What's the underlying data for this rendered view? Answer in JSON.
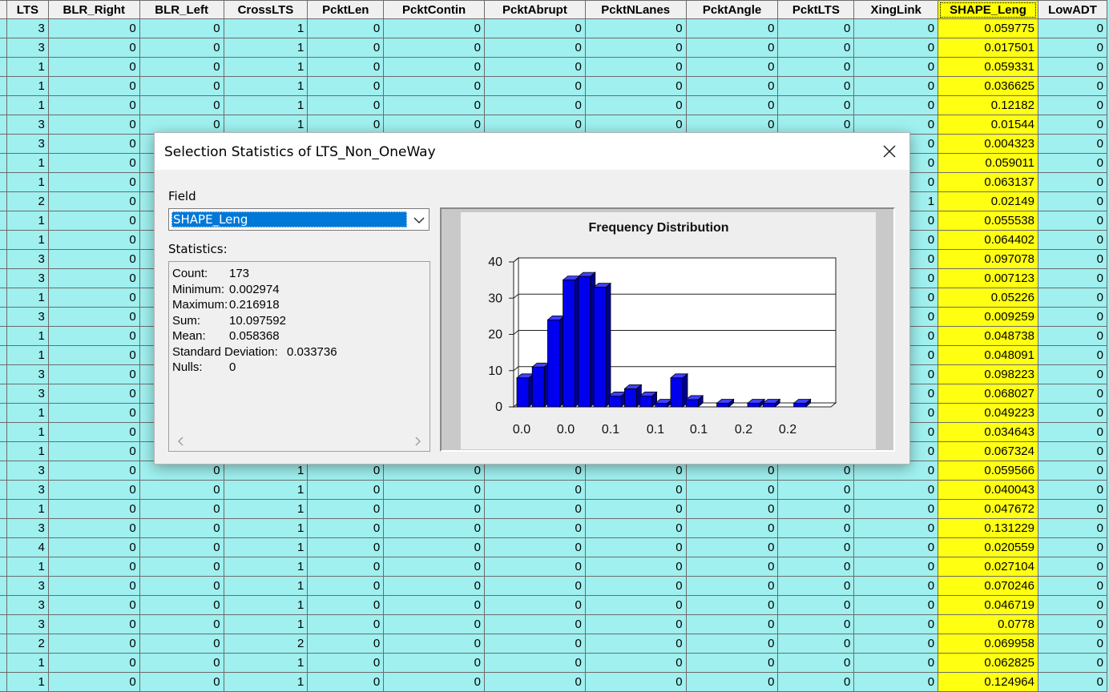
{
  "table": {
    "columns": [
      "LTS",
      "BLR_Right",
      "BLR_Left",
      "CrossLTS",
      "PcktLen",
      "PcktContin",
      "PcktAbrupt",
      "PcktNLanes",
      "PcktAngle",
      "PcktLTS",
      "XingLink",
      "SHAPE_Leng",
      "LowADT"
    ],
    "selected_column": "SHAPE_Leng",
    "rows": [
      [
        "3",
        "0",
        "0",
        "1",
        "0",
        "0",
        "0",
        "0",
        "0",
        "0",
        "0",
        "0.059775",
        "0"
      ],
      [
        "3",
        "0",
        "0",
        "1",
        "0",
        "0",
        "0",
        "0",
        "0",
        "0",
        "0",
        "0.017501",
        "0"
      ],
      [
        "1",
        "0",
        "0",
        "1",
        "0",
        "0",
        "0",
        "0",
        "0",
        "0",
        "0",
        "0.059331",
        "0"
      ],
      [
        "1",
        "0",
        "0",
        "1",
        "0",
        "0",
        "0",
        "0",
        "0",
        "0",
        "0",
        "0.036625",
        "0"
      ],
      [
        "1",
        "0",
        "0",
        "1",
        "0",
        "0",
        "0",
        "0",
        "0",
        "0",
        "0",
        "0.12182",
        "0"
      ],
      [
        "3",
        "0",
        "0",
        "1",
        "0",
        "0",
        "0",
        "0",
        "0",
        "0",
        "0",
        "0.01544",
        "0"
      ],
      [
        "3",
        "0",
        "",
        "",
        "",
        "",
        "",
        "",
        "",
        "",
        "0",
        "0.004323",
        "0"
      ],
      [
        "1",
        "0",
        "",
        "",
        "",
        "",
        "",
        "",
        "",
        "",
        "0",
        "0.059011",
        "0"
      ],
      [
        "1",
        "0",
        "",
        "",
        "",
        "",
        "",
        "",
        "",
        "",
        "0",
        "0.063137",
        "0"
      ],
      [
        "2",
        "0",
        "",
        "",
        "",
        "",
        "",
        "",
        "",
        "",
        "1",
        "0.02149",
        "0"
      ],
      [
        "1",
        "0",
        "",
        "",
        "",
        "",
        "",
        "",
        "",
        "",
        "0",
        "0.055538",
        "0"
      ],
      [
        "1",
        "0",
        "",
        "",
        "",
        "",
        "",
        "",
        "",
        "",
        "0",
        "0.064402",
        "0"
      ],
      [
        "3",
        "0",
        "",
        "",
        "",
        "",
        "",
        "",
        "",
        "",
        "0",
        "0.097078",
        "0"
      ],
      [
        "3",
        "0",
        "",
        "",
        "",
        "",
        "",
        "",
        "",
        "",
        "0",
        "0.007123",
        "0"
      ],
      [
        "1",
        "0",
        "",
        "",
        "",
        "",
        "",
        "",
        "",
        "",
        "0",
        "0.05226",
        "0"
      ],
      [
        "3",
        "0",
        "",
        "",
        "",
        "",
        "",
        "",
        "",
        "",
        "0",
        "0.009259",
        "0"
      ],
      [
        "1",
        "0",
        "",
        "",
        "",
        "",
        "",
        "",
        "",
        "",
        "0",
        "0.048738",
        "0"
      ],
      [
        "1",
        "0",
        "",
        "",
        "",
        "",
        "",
        "",
        "",
        "",
        "0",
        "0.048091",
        "0"
      ],
      [
        "3",
        "0",
        "",
        "",
        "",
        "",
        "",
        "",
        "",
        "",
        "0",
        "0.098223",
        "0"
      ],
      [
        "3",
        "0",
        "",
        "",
        "",
        "",
        "",
        "",
        "",
        "",
        "0",
        "0.068027",
        "0"
      ],
      [
        "1",
        "0",
        "",
        "",
        "",
        "",
        "",
        "",
        "",
        "",
        "0",
        "0.049223",
        "0"
      ],
      [
        "1",
        "0",
        "",
        "",
        "",
        "",
        "",
        "",
        "",
        "",
        "0",
        "0.034643",
        "0"
      ],
      [
        "1",
        "0",
        "",
        "",
        "",
        "",
        "",
        "",
        "",
        "",
        "0",
        "0.067324",
        "0"
      ],
      [
        "3",
        "0",
        "0",
        "1",
        "0",
        "0",
        "0",
        "0",
        "0",
        "0",
        "0",
        "0.059566",
        "0"
      ],
      [
        "3",
        "0",
        "0",
        "1",
        "0",
        "0",
        "0",
        "0",
        "0",
        "0",
        "0",
        "0.040043",
        "0"
      ],
      [
        "1",
        "0",
        "0",
        "1",
        "0",
        "0",
        "0",
        "0",
        "0",
        "0",
        "0",
        "0.047672",
        "0"
      ],
      [
        "3",
        "0",
        "0",
        "1",
        "0",
        "0",
        "0",
        "0",
        "0",
        "0",
        "0",
        "0.131229",
        "0"
      ],
      [
        "4",
        "0",
        "0",
        "1",
        "0",
        "0",
        "0",
        "0",
        "0",
        "0",
        "0",
        "0.020559",
        "0"
      ],
      [
        "1",
        "0",
        "0",
        "1",
        "0",
        "0",
        "0",
        "0",
        "0",
        "0",
        "0",
        "0.027104",
        "0"
      ],
      [
        "3",
        "0",
        "0",
        "1",
        "0",
        "0",
        "0",
        "0",
        "0",
        "0",
        "0",
        "0.070246",
        "0"
      ],
      [
        "3",
        "0",
        "0",
        "1",
        "0",
        "0",
        "0",
        "0",
        "0",
        "0",
        "0",
        "0.046719",
        "0"
      ],
      [
        "3",
        "0",
        "0",
        "1",
        "0",
        "0",
        "0",
        "0",
        "0",
        "0",
        "0",
        "0.0778",
        "0"
      ],
      [
        "2",
        "0",
        "0",
        "2",
        "0",
        "0",
        "0",
        "0",
        "0",
        "0",
        "0",
        "0.069958",
        "0"
      ],
      [
        "1",
        "0",
        "0",
        "1",
        "0",
        "0",
        "0",
        "0",
        "0",
        "0",
        "0",
        "0.062825",
        "0"
      ],
      [
        "1",
        "0",
        "0",
        "1",
        "0",
        "0",
        "0",
        "0",
        "0",
        "0",
        "0",
        "0.124964",
        "0"
      ]
    ]
  },
  "dialog": {
    "title": "Selection Statistics of LTS_Non_OneWay",
    "field_label": "Field",
    "field_value": "SHAPE_Leng",
    "statistics_label": "Statistics:",
    "stats": [
      {
        "label": "Count:",
        "value": "173"
      },
      {
        "label": "Minimum:",
        "value": "0.002974"
      },
      {
        "label": "Maximum:",
        "value": "0.216918"
      },
      {
        "label": "Sum:",
        "value": "10.097592"
      },
      {
        "label": "Mean:",
        "value": "0.058368"
      },
      {
        "label": "Standard Deviation:",
        "value": "0.033736"
      },
      {
        "label": "Nulls:",
        "value": "0"
      }
    ]
  },
  "chart_data": {
    "type": "bar",
    "title": "Frequency Distribution",
    "ylim": [
      0,
      40
    ],
    "yticks": [
      0,
      10,
      20,
      30,
      40
    ],
    "xtick_labels": [
      "0.0",
      "0.0",
      "0.1",
      "0.1",
      "0.1",
      "0.2",
      "0.2"
    ],
    "values": [
      8,
      11,
      24,
      35,
      36,
      33,
      3,
      5,
      3,
      1,
      8,
      2,
      0,
      1,
      0,
      1,
      1,
      0,
      1
    ],
    "bar_color": "#0000ee",
    "xlabel": "",
    "ylabel": ""
  },
  "colors": {
    "cell_bg": "#9ff0ef",
    "selected_col": "#ffff00",
    "selection_blue": "#0078d7"
  }
}
